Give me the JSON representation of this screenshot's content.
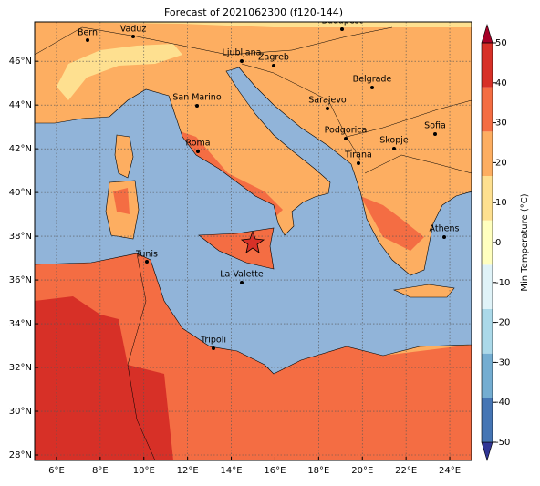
{
  "title": "Forecast of 2021062300 (f120-144)",
  "map": {
    "lonlim": [
      5,
      25
    ],
    "latlim": [
      27.75,
      47.8
    ],
    "lon_ticks": [
      {
        "value": 6,
        "label": "6°E"
      },
      {
        "value": 8,
        "label": "8°E"
      },
      {
        "value": 10,
        "label": "10°E"
      },
      {
        "value": 12,
        "label": "12°E"
      },
      {
        "value": 14,
        "label": "14°E"
      },
      {
        "value": 16,
        "label": "16°E"
      },
      {
        "value": 18,
        "label": "18°E"
      },
      {
        "value": 20,
        "label": "20°E"
      },
      {
        "value": 22,
        "label": "22°E"
      },
      {
        "value": 24,
        "label": "24°E"
      }
    ],
    "lat_ticks": [
      {
        "value": 28,
        "label": "28°N"
      },
      {
        "value": 30,
        "label": "30°N"
      },
      {
        "value": 32,
        "label": "32°N"
      },
      {
        "value": 34,
        "label": "34°N"
      },
      {
        "value": 36,
        "label": "36°N"
      },
      {
        "value": 38,
        "label": "38°N"
      },
      {
        "value": 40,
        "label": "40°N"
      },
      {
        "value": 42,
        "label": "42°N"
      },
      {
        "value": 44,
        "label": "44°N"
      },
      {
        "value": 46,
        "label": "46°N"
      }
    ]
  },
  "cities": [
    "Bern",
    "Vaduz",
    "Budapest",
    "Ljubljana",
    "Zagreb",
    "Belgrade",
    "San Marino",
    "Sarajevo",
    "Sofia",
    "Podgorica",
    "Skopje",
    "Roma",
    "Tirana",
    "Athens",
    "Tunis",
    "La Valette",
    "Tripoli"
  ],
  "colorbar": {
    "label": "Min Temperature (°C)",
    "lim": [
      -50,
      50
    ],
    "ticks": [
      -50,
      -40,
      -30,
      -20,
      -10,
      0,
      10,
      20,
      30,
      40,
      50
    ],
    "colors": [
      "#313695",
      "#4575b4",
      "#74add1",
      "#abd9e9",
      "#e0f3f8",
      "#ffffbf",
      "#fee090",
      "#fdae61",
      "#f46d43",
      "#d73027",
      "#a50026"
    ]
  }
}
